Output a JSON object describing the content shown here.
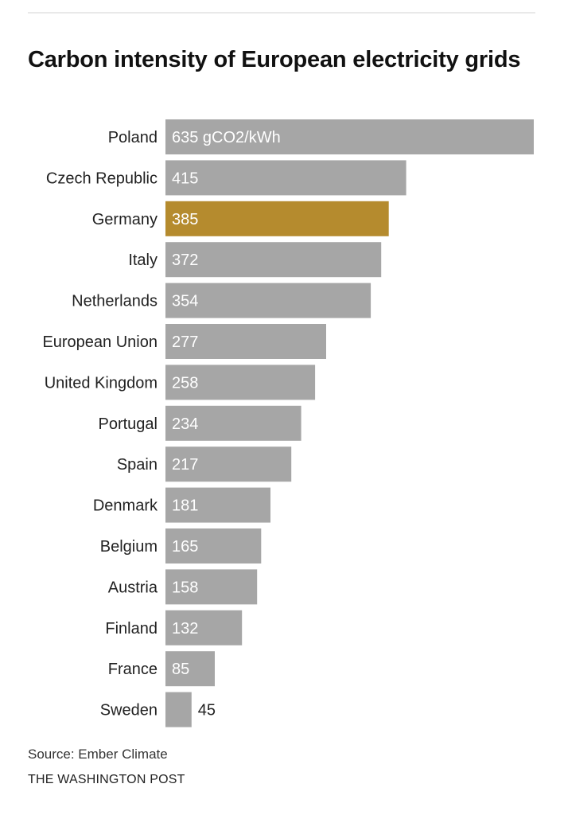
{
  "header": {
    "title": "Carbon intensity of European electricity grids"
  },
  "footer": {
    "source": "Source: Ember Climate",
    "credit": "THE WASHINGTON POST"
  },
  "colors": {
    "bar": "#a6a6a6",
    "highlight": "#b58b2e",
    "label_inside": "#ffffff",
    "label_outside": "#222222"
  },
  "chart_data": {
    "type": "bar",
    "orientation": "horizontal",
    "title": "Carbon intensity of European electricity grids",
    "unit": "gCO2/kWh",
    "categories": [
      "Poland",
      "Czech Republic",
      "Germany",
      "Italy",
      "Netherlands",
      "European Union",
      "United Kingdom",
      "Portugal",
      "Spain",
      "Denmark",
      "Belgium",
      "Austria",
      "Finland",
      "France",
      "Sweden"
    ],
    "values": [
      635,
      415,
      385,
      372,
      354,
      277,
      258,
      234,
      217,
      181,
      165,
      158,
      132,
      85,
      45
    ],
    "value_labels": [
      "635 gCO2/kWh",
      "415",
      "385",
      "372",
      "354",
      "277",
      "258",
      "234",
      "217",
      "181",
      "165",
      "158",
      "132",
      "85",
      "45"
    ],
    "highlight": "Germany",
    "xlim": [
      0,
      635
    ],
    "grid": false,
    "legend": "none"
  }
}
